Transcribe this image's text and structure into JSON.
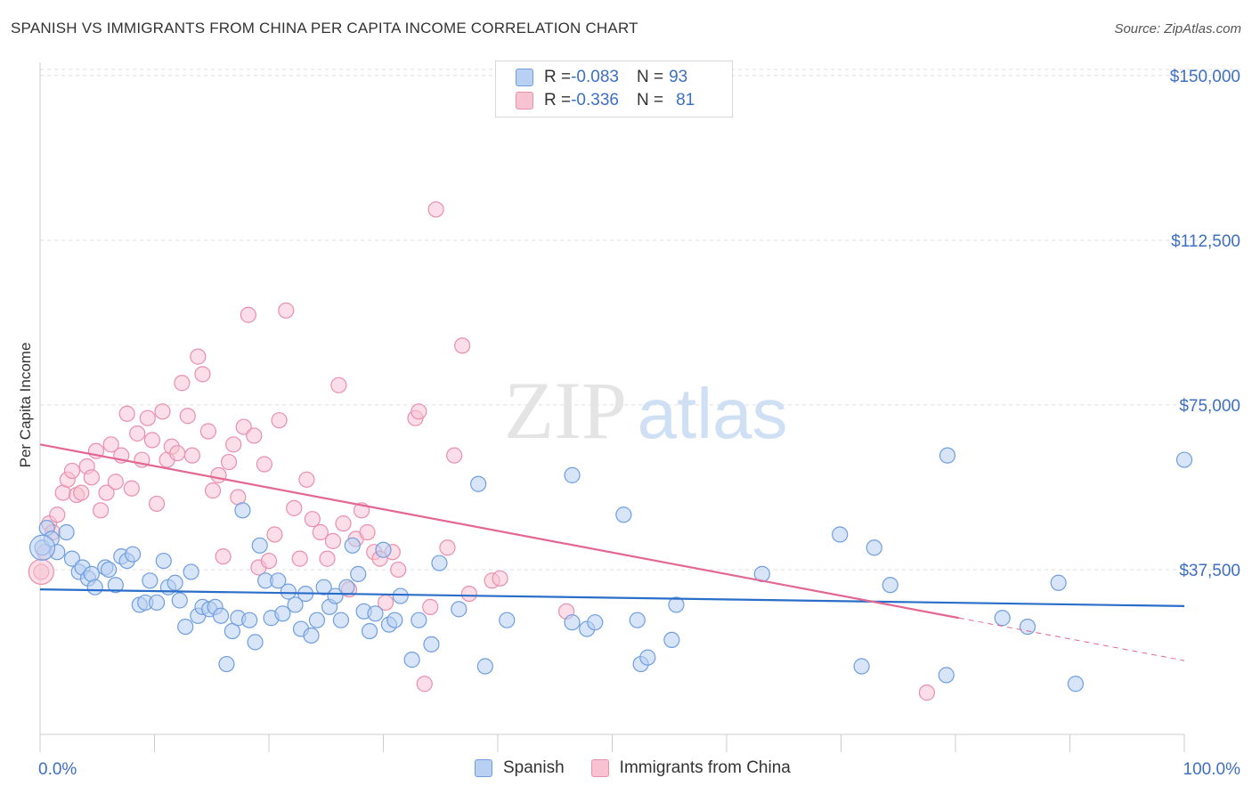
{
  "title": "SPANISH VS IMMIGRANTS FROM CHINA PER CAPITA INCOME CORRELATION CHART",
  "source": "Source: ZipAtlas.com",
  "watermark": {
    "zip": "ZIP",
    "atlas": "atlas"
  },
  "colors": {
    "blue_fill": "#b8d0f2",
    "blue_stroke": "#6f9ee0",
    "blue_line": "#2a6ec9",
    "pink_fill": "#f7c3d3",
    "pink_stroke": "#ea8fac",
    "pink_line": "#e36693",
    "axis_label": "#3d6fc4",
    "grid": "#dddddd"
  },
  "legend": {
    "rows": [
      {
        "r_label": "R = ",
        "r_value": "-0.083",
        "n_label": "N = ",
        "n_value": "93"
      },
      {
        "r_label": "R = ",
        "r_value": "-0.336",
        "n_label": "N = ",
        "n_value": "81"
      }
    ]
  },
  "bottom_legend": {
    "items": [
      "Spanish",
      "Immigrants from China"
    ]
  },
  "chart_data": {
    "type": "scatter",
    "title": "SPANISH VS IMMIGRANTS FROM CHINA PER CAPITA INCOME CORRELATION CHART",
    "xlabel": "",
    "ylabel": "Per Capita Income",
    "xlim": [
      0,
      100
    ],
    "ylim": [
      0,
      153000
    ],
    "x_tick_labels": [
      "0.0%",
      "100.0%"
    ],
    "y_ticks": [
      37500,
      75000,
      112500,
      150000
    ],
    "y_tick_labels": [
      "$37,500",
      "$75,000",
      "$112,500",
      "$150,000"
    ],
    "grid": true,
    "legend_position": "top-center",
    "series": [
      {
        "name": "Spanish",
        "r": -0.083,
        "n": 93,
        "trend": {
          "x": [
            0,
            100
          ],
          "y": [
            33000,
            29200
          ],
          "dashed_from_x": null
        },
        "points": [
          [
            0.2,
            42500
          ],
          [
            0.6,
            47000
          ],
          [
            1.0,
            44500
          ],
          [
            1.5,
            41500
          ],
          [
            2.3,
            46000
          ],
          [
            2.8,
            40000
          ],
          [
            3.4,
            37000
          ],
          [
            3.7,
            38000
          ],
          [
            4.2,
            35500
          ],
          [
            4.5,
            36500
          ],
          [
            4.8,
            33500
          ],
          [
            5.7,
            38000
          ],
          [
            6.0,
            37500
          ],
          [
            6.6,
            34000
          ],
          [
            7.1,
            40500
          ],
          [
            7.6,
            39500
          ],
          [
            8.1,
            41000
          ],
          [
            8.7,
            29500
          ],
          [
            9.2,
            30000
          ],
          [
            9.6,
            35000
          ],
          [
            10.2,
            30000
          ],
          [
            10.8,
            39500
          ],
          [
            11.2,
            33500
          ],
          [
            11.8,
            34500
          ],
          [
            12.2,
            30500
          ],
          [
            12.7,
            24500
          ],
          [
            13.2,
            37000
          ],
          [
            13.8,
            27000
          ],
          [
            14.2,
            29000
          ],
          [
            14.8,
            28500
          ],
          [
            15.3,
            29000
          ],
          [
            15.8,
            27000
          ],
          [
            16.3,
            16000
          ],
          [
            16.8,
            23500
          ],
          [
            17.3,
            26500
          ],
          [
            17.7,
            51000
          ],
          [
            18.3,
            26000
          ],
          [
            18.8,
            21000
          ],
          [
            19.2,
            43000
          ],
          [
            19.7,
            35000
          ],
          [
            20.2,
            26500
          ],
          [
            20.8,
            35000
          ],
          [
            21.2,
            27500
          ],
          [
            21.7,
            32500
          ],
          [
            22.3,
            29500
          ],
          [
            22.8,
            24000
          ],
          [
            23.2,
            32000
          ],
          [
            23.7,
            22500
          ],
          [
            24.2,
            26000
          ],
          [
            24.8,
            33500
          ],
          [
            25.3,
            29000
          ],
          [
            25.8,
            31500
          ],
          [
            26.3,
            26000
          ],
          [
            26.8,
            33500
          ],
          [
            27.3,
            43000
          ],
          [
            27.8,
            36500
          ],
          [
            28.3,
            28000
          ],
          [
            28.8,
            23500
          ],
          [
            29.3,
            27500
          ],
          [
            30.0,
            42000
          ],
          [
            30.5,
            25000
          ],
          [
            31.0,
            26000
          ],
          [
            31.5,
            31500
          ],
          [
            32.5,
            17000
          ],
          [
            33.1,
            26000
          ],
          [
            34.2,
            20500
          ],
          [
            34.9,
            39000
          ],
          [
            36.6,
            28500
          ],
          [
            38.3,
            57000
          ],
          [
            38.9,
            15500
          ],
          [
            40.8,
            26000
          ],
          [
            46.5,
            59000
          ],
          [
            46.5,
            25500
          ],
          [
            47.8,
            24000
          ],
          [
            48.5,
            25500
          ],
          [
            51.0,
            50000
          ],
          [
            52.2,
            26000
          ],
          [
            52.5,
            16000
          ],
          [
            53.1,
            17500
          ],
          [
            55.2,
            21500
          ],
          [
            55.6,
            29500
          ],
          [
            63.1,
            36500
          ],
          [
            69.9,
            45500
          ],
          [
            71.8,
            15500
          ],
          [
            72.9,
            42500
          ],
          [
            74.3,
            34000
          ],
          [
            79.2,
            13500
          ],
          [
            79.3,
            63500
          ],
          [
            84.1,
            26500
          ],
          [
            86.3,
            24500
          ],
          [
            89.0,
            34500
          ],
          [
            90.5,
            11500
          ],
          [
            100.0,
            62500
          ]
        ]
      },
      {
        "name": "Immigrants from China",
        "r": -0.336,
        "n": 81,
        "trend": {
          "x": [
            0,
            80.3
          ],
          "y": [
            66000,
            26500
          ],
          "dashed_from_x": 80.3,
          "dashed_to": [
            100,
            16800
          ]
        },
        "points": [
          [
            0.1,
            37000
          ],
          [
            0.4,
            41500
          ],
          [
            0.8,
            48000
          ],
          [
            1.1,
            46000
          ],
          [
            1.5,
            50000
          ],
          [
            2.0,
            55000
          ],
          [
            2.4,
            58000
          ],
          [
            2.8,
            60000
          ],
          [
            3.2,
            54500
          ],
          [
            3.6,
            55000
          ],
          [
            4.1,
            61000
          ],
          [
            4.5,
            58500
          ],
          [
            4.9,
            64500
          ],
          [
            5.3,
            51000
          ],
          [
            5.8,
            55000
          ],
          [
            6.2,
            66000
          ],
          [
            6.6,
            57500
          ],
          [
            7.1,
            63500
          ],
          [
            7.6,
            73000
          ],
          [
            8.0,
            56000
          ],
          [
            8.5,
            68500
          ],
          [
            8.9,
            62500
          ],
          [
            9.4,
            72000
          ],
          [
            9.8,
            67000
          ],
          [
            10.2,
            52500
          ],
          [
            10.7,
            73500
          ],
          [
            11.1,
            62500
          ],
          [
            11.5,
            65500
          ],
          [
            12.0,
            64000
          ],
          [
            12.4,
            80000
          ],
          [
            12.9,
            72500
          ],
          [
            13.3,
            63500
          ],
          [
            13.8,
            86000
          ],
          [
            14.2,
            82000
          ],
          [
            14.7,
            69000
          ],
          [
            15.1,
            55500
          ],
          [
            15.6,
            59000
          ],
          [
            16.0,
            40500
          ],
          [
            16.5,
            62000
          ],
          [
            16.9,
            66000
          ],
          [
            17.3,
            54000
          ],
          [
            17.8,
            70000
          ],
          [
            18.2,
            95500
          ],
          [
            18.7,
            68000
          ],
          [
            19.1,
            38000
          ],
          [
            19.6,
            61500
          ],
          [
            20.0,
            39500
          ],
          [
            20.5,
            45500
          ],
          [
            20.9,
            71500
          ],
          [
            21.5,
            96500
          ],
          [
            22.2,
            51500
          ],
          [
            22.7,
            40000
          ],
          [
            23.3,
            58000
          ],
          [
            23.8,
            49000
          ],
          [
            24.5,
            46000
          ],
          [
            25.1,
            40000
          ],
          [
            25.6,
            44000
          ],
          [
            26.1,
            79500
          ],
          [
            26.5,
            48000
          ],
          [
            27.0,
            33000
          ],
          [
            27.6,
            44500
          ],
          [
            28.1,
            51000
          ],
          [
            28.6,
            46000
          ],
          [
            29.2,
            41500
          ],
          [
            29.7,
            40000
          ],
          [
            30.2,
            30000
          ],
          [
            30.8,
            41500
          ],
          [
            31.3,
            37500
          ],
          [
            32.8,
            72000
          ],
          [
            33.1,
            73500
          ],
          [
            33.6,
            11500
          ],
          [
            34.1,
            29000
          ],
          [
            34.6,
            119500
          ],
          [
            35.6,
            42500
          ],
          [
            36.2,
            63500
          ],
          [
            36.9,
            88500
          ],
          [
            37.5,
            32000
          ],
          [
            39.5,
            35000
          ],
          [
            40.2,
            35500
          ],
          [
            46.0,
            28000
          ],
          [
            77.5,
            9500
          ]
        ]
      }
    ]
  }
}
